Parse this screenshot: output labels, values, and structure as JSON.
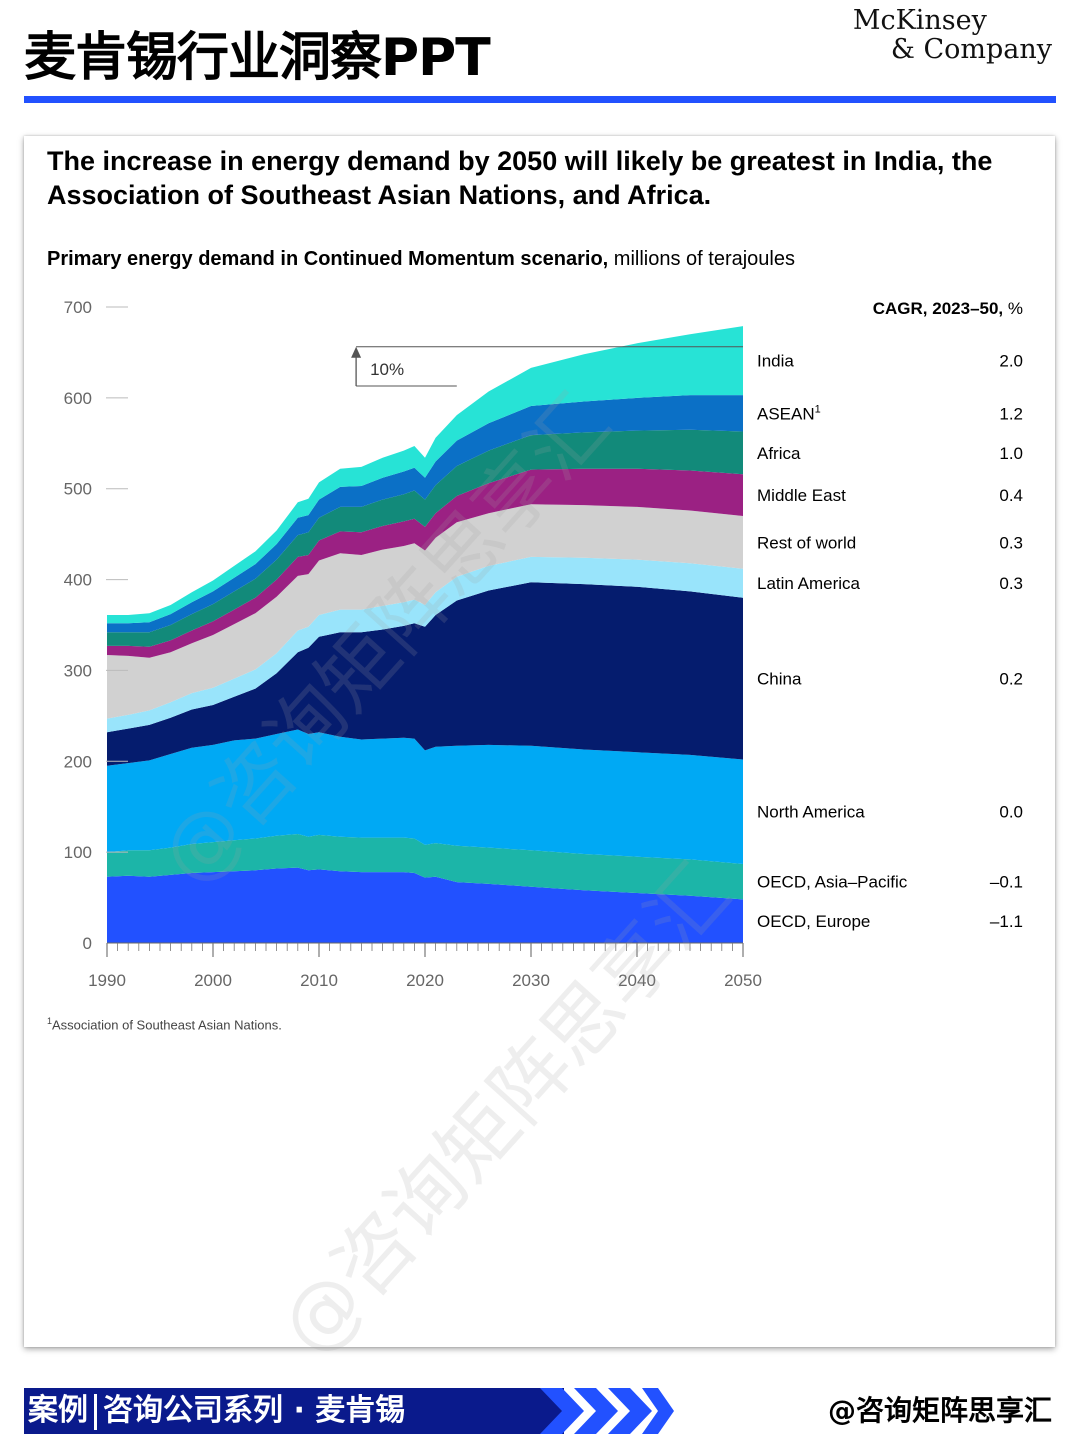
{
  "page": {
    "title": "麦肯锡行业洞察PPT",
    "logo_line1": "McKinsey",
    "logo_line2": "& Company",
    "watermark": "@咨询矩阵思享汇",
    "banner_left": "案例",
    "banner_right": "咨询公司系列 · 麦肯锡",
    "handle": "@咨询矩阵思享汇",
    "colors": {
      "accent": "#2251ff",
      "banner": "#0a1a8c"
    }
  },
  "chart_data": {
    "type": "area",
    "stacked": true,
    "title": "The increase in energy demand by 2050 will likely be greatest in India, the Association of Southeast Asian Nations, and Africa.",
    "subtitle_bold": "Primary energy demand in Continued Momentum scenario,",
    "subtitle_rest": " millions of terajoules",
    "cagr_header_bold": "CAGR, 2023–50,",
    "cagr_header_rest": " %",
    "annotation": "10%",
    "footnote_mark": "1",
    "footnote": "Association of Southeast Asian Nations.",
    "xlim": [
      1990,
      2050
    ],
    "ylim": [
      0,
      700
    ],
    "yticks": [
      0,
      100,
      200,
      300,
      400,
      500,
      600,
      700
    ],
    "xticks": [
      1990,
      2000,
      2010,
      2020,
      2030,
      2040,
      2050
    ],
    "x": [
      1990,
      1992,
      1994,
      1996,
      1998,
      2000,
      2002,
      2004,
      2006,
      2008,
      2009,
      2010,
      2012,
      2014,
      2016,
      2018,
      2019,
      2020,
      2021,
      2023,
      2026,
      2030,
      2035,
      2040,
      2045,
      2050
    ],
    "series": [
      {
        "name": "OECD, Europe",
        "cagr": "–1.1",
        "color": "#2251ff",
        "values": [
          73,
          74,
          73,
          75,
          77,
          78,
          79,
          80,
          82,
          83,
          80,
          81,
          79,
          78,
          78,
          78,
          77,
          72,
          73,
          67,
          65,
          62,
          58,
          55,
          52,
          48
        ]
      },
      {
        "name": "OECD, Asia–Pacific",
        "cagr": "–0.1",
        "color": "#1cb5a8",
        "values": [
          27,
          28,
          29,
          30,
          32,
          33,
          34,
          35,
          36,
          37,
          37,
          38,
          38,
          38,
          38,
          38,
          38,
          36,
          37,
          40,
          40,
          40,
          40,
          40,
          40,
          39
        ]
      },
      {
        "name": "North America",
        "cagr": "0.0",
        "color": "#00a9f4",
        "values": [
          95,
          96,
          99,
          103,
          106,
          107,
          110,
          110,
          112,
          115,
          113,
          113,
          110,
          108,
          109,
          110,
          110,
          104,
          106,
          110,
          113,
          115,
          115,
          115,
          115,
          115
        ]
      },
      {
        "name": "China",
        "cagr": "0.2",
        "color": "#051c6e",
        "values": [
          37,
          38,
          39,
          40,
          42,
          44,
          48,
          55,
          67,
          85,
          95,
          105,
          115,
          118,
          120,
          123,
          127,
          136,
          145,
          160,
          170,
          180,
          182,
          182,
          180,
          178
        ]
      },
      {
        "name": "Latin America",
        "cagr": "0.3",
        "color": "#99e4fb",
        "values": [
          15,
          15,
          16,
          17,
          18,
          19,
          20,
          21,
          22,
          24,
          23,
          24,
          25,
          25,
          26,
          26,
          26,
          24,
          25,
          26,
          27,
          28,
          29,
          30,
          31,
          32
        ]
      },
      {
        "name": "Rest of world",
        "cagr": "0.3",
        "color": "#d1d1d1",
        "values": [
          70,
          65,
          58,
          55,
          55,
          58,
          60,
          62,
          62,
          60,
          58,
          60,
          62,
          60,
          62,
          62,
          62,
          60,
          60,
          60,
          58,
          58,
          58,
          58,
          58,
          58
        ]
      },
      {
        "name": "Middle East",
        "cagr": "0.4",
        "color": "#9b2183",
        "values": [
          10,
          11,
          12,
          13,
          14,
          15,
          16,
          17,
          19,
          21,
          21,
          22,
          24,
          25,
          26,
          27,
          27,
          26,
          27,
          29,
          33,
          38,
          40,
          42,
          44,
          46
        ]
      },
      {
        "name": "Africa",
        "cagr": "1.0",
        "color": "#128a7a",
        "values": [
          15,
          15,
          16,
          17,
          18,
          19,
          20,
          21,
          22,
          24,
          25,
          25,
          27,
          28,
          29,
          30,
          31,
          30,
          31,
          33,
          36,
          38,
          40,
          42,
          45,
          47
        ]
      },
      {
        "name": "ASEAN",
        "sup": "1",
        "cagr": "1.2",
        "color": "#0b70c6",
        "values": [
          10,
          10,
          11,
          12,
          13,
          14,
          15,
          16,
          17,
          19,
          19,
          20,
          22,
          23,
          24,
          25,
          25,
          24,
          26,
          28,
          30,
          32,
          34,
          36,
          38,
          40
        ]
      },
      {
        "name": "India",
        "cagr": "2.0",
        "color": "#27e3d6",
        "values": [
          9,
          9,
          10,
          10,
          11,
          12,
          13,
          14,
          15,
          17,
          18,
          19,
          20,
          21,
          22,
          23,
          24,
          22,
          26,
          28,
          35,
          42,
          52,
          60,
          67,
          76
        ]
      }
    ]
  }
}
